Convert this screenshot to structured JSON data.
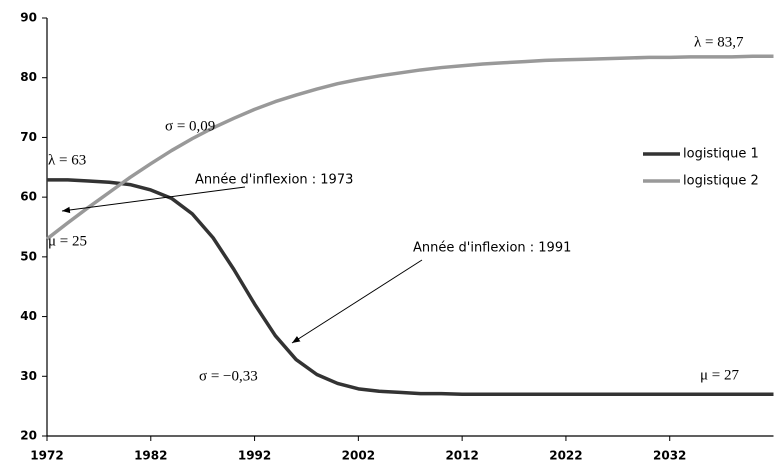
{
  "chart_data": {
    "type": "line",
    "x": [
      1972,
      1974,
      1976,
      1978,
      1980,
      1982,
      1984,
      1986,
      1988,
      1990,
      1992,
      1994,
      1996,
      1998,
      2000,
      2002,
      2004,
      2006,
      2008,
      2010,
      2012,
      2014,
      2016,
      2018,
      2020,
      2022,
      2024,
      2026,
      2028,
      2030,
      2032,
      2034,
      2036,
      2038,
      2040,
      2042
    ],
    "series": [
      {
        "name": "logistique 1",
        "color": "#333333",
        "values": [
          62.9,
          62.9,
          62.7,
          62.5,
          62.1,
          61.2,
          59.8,
          57.2,
          53.2,
          47.9,
          42.1,
          36.8,
          32.8,
          30.3,
          28.8,
          27.9,
          27.5,
          27.3,
          27.1,
          27.1,
          27.0,
          27.0,
          27.0,
          27.0,
          27.0,
          27.0,
          27.0,
          27.0,
          27.0,
          27.0,
          27.0,
          27.0,
          27.0,
          27.0,
          27.0,
          27.0
        ]
      },
      {
        "name": "logistique 2",
        "color": "#999999",
        "values": [
          53.0,
          55.7,
          58.3,
          60.8,
          63.3,
          65.6,
          67.8,
          69.8,
          71.6,
          73.2,
          74.7,
          76.0,
          77.1,
          78.1,
          79.0,
          79.7,
          80.3,
          80.8,
          81.3,
          81.7,
          82.0,
          82.3,
          82.5,
          82.7,
          82.9,
          83.0,
          83.1,
          83.2,
          83.3,
          83.4,
          83.4,
          83.5,
          83.5,
          83.5,
          83.6,
          83.6
        ]
      }
    ],
    "xlim": [
      1972,
      2042
    ],
    "xticks": [
      1972,
      1982,
      1992,
      2002,
      2012,
      2022,
      2032
    ],
    "ylim": [
      20,
      90
    ],
    "yticks": [
      20,
      30,
      40,
      50,
      60,
      70,
      80,
      90
    ],
    "legend": "right",
    "annotations": [
      "λ = 63",
      "μ = 25",
      "σ = 0,09",
      "λ = 83,7",
      "σ = −0,33",
      "μ = 27",
      "Année d'inflexion : 1973",
      "Année d'inflexion : 1991"
    ]
  }
}
